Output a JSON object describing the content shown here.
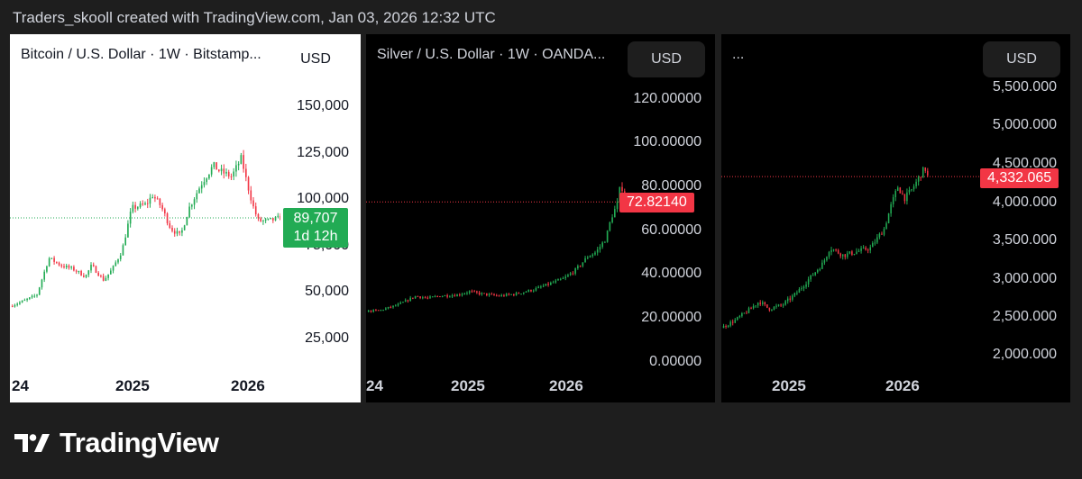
{
  "header": {
    "text": "Traders_skooll created with TradingView.com, Jan 03, 2026 12:32 UTC"
  },
  "brand": {
    "name": "TradingView"
  },
  "colors": {
    "up": "#22ab54",
    "down": "#f23645",
    "bg_dark": "#000000",
    "bg_light": "#ffffff"
  },
  "charts": [
    {
      "title": "Bitcoin / U.S. Dollar · 1W · Bitstamp...",
      "currency": "USD",
      "theme": "light",
      "y_ticks": [
        "150,000",
        "125,000",
        "100,000",
        "75,000",
        "50,000",
        "25,000"
      ],
      "x_ticks": [
        "24",
        "2025",
        "2026"
      ],
      "last_price": "89,707",
      "countdown": "1d 12h"
    },
    {
      "title": "Silver / U.S. Dollar · 1W · OANDA...",
      "currency": "USD",
      "theme": "dark",
      "y_ticks": [
        "120.00000",
        "100.00000",
        "80.00000",
        "60.00000",
        "40.00000",
        "20.00000",
        "0.00000"
      ],
      "x_ticks": [
        "24",
        "2025",
        "2026"
      ],
      "last_price": "72.82140"
    },
    {
      "title": "...",
      "currency": "USD",
      "theme": "dark",
      "y_ticks": [
        "5,500.000",
        "5,000.000",
        "4,500.000",
        "4,000.000",
        "3,500.000",
        "3,000.000",
        "2,500.000",
        "2,000.000"
      ],
      "x_ticks": [
        "2025",
        "2026"
      ],
      "last_price": "4,332.065"
    }
  ],
  "chart_data": [
    {
      "type": "candlestick",
      "title": "Bitcoin / U.S. Dollar · 1W · Bitstamp...",
      "interval": "1W",
      "ylim": [
        10000,
        160000
      ],
      "x_range": [
        2023.88,
        2026.1
      ],
      "last": 89707,
      "path": [
        [
          2023.88,
          42000
        ],
        [
          2024.0,
          45000
        ],
        [
          2024.1,
          48000
        ],
        [
          2024.2,
          68000
        ],
        [
          2024.3,
          64000
        ],
        [
          2024.4,
          62000
        ],
        [
          2024.5,
          58000
        ],
        [
          2024.55,
          64000
        ],
        [
          2024.65,
          56000
        ],
        [
          2024.72,
          62000
        ],
        [
          2024.8,
          72000
        ],
        [
          2024.88,
          95000
        ],
        [
          2025.0,
          97000
        ],
        [
          2025.05,
          102000
        ],
        [
          2025.12,
          96000
        ],
        [
          2025.2,
          84000
        ],
        [
          2025.28,
          80000
        ],
        [
          2025.35,
          95000
        ],
        [
          2025.45,
          108000
        ],
        [
          2025.55,
          118000
        ],
        [
          2025.6,
          115000
        ],
        [
          2025.7,
          112000
        ],
        [
          2025.78,
          122000
        ],
        [
          2025.82,
          110000
        ],
        [
          2025.88,
          95000
        ],
        [
          2025.92,
          88000
        ],
        [
          2026.0,
          88000
        ],
        [
          2026.1,
          89707
        ]
      ]
    },
    {
      "type": "candlestick",
      "title": "Silver / U.S. Dollar · 1W · OANDA...",
      "interval": "1W",
      "ylim": [
        -10,
        130
      ],
      "x_range": [
        2023.88,
        2026.1
      ],
      "last": 72.8214,
      "path": [
        [
          2023.88,
          23
        ],
        [
          2024.0,
          23.5
        ],
        [
          2024.15,
          26
        ],
        [
          2024.3,
          30
        ],
        [
          2024.4,
          29
        ],
        [
          2024.5,
          30
        ],
        [
          2024.65,
          30.5
        ],
        [
          2024.75,
          32
        ],
        [
          2024.85,
          31
        ],
        [
          2025.0,
          30
        ],
        [
          2025.15,
          31
        ],
        [
          2025.3,
          33
        ],
        [
          2025.45,
          36
        ],
        [
          2025.55,
          38
        ],
        [
          2025.65,
          42
        ],
        [
          2025.75,
          48
        ],
        [
          2025.82,
          50
        ],
        [
          2025.9,
          56
        ],
        [
          2025.95,
          66
        ],
        [
          2026.0,
          72
        ],
        [
          2026.03,
          82
        ],
        [
          2026.06,
          72.82
        ]
      ]
    },
    {
      "type": "candlestick",
      "title": "...",
      "interval": "1W",
      "ylim": [
        1700,
        5900
      ],
      "x_range": [
        2024.5,
        2026.4
      ],
      "last": 4332.065,
      "path": [
        [
          2024.5,
          2350
        ],
        [
          2024.6,
          2450
        ],
        [
          2024.7,
          2580
        ],
        [
          2024.78,
          2700
        ],
        [
          2024.85,
          2600
        ],
        [
          2024.95,
          2650
        ],
        [
          2025.05,
          2800
        ],
        [
          2025.15,
          3000
        ],
        [
          2025.25,
          3200
        ],
        [
          2025.3,
          3400
        ],
        [
          2025.4,
          3300
        ],
        [
          2025.5,
          3350
        ],
        [
          2025.6,
          3400
        ],
        [
          2025.7,
          3650
        ],
        [
          2025.75,
          3950
        ],
        [
          2025.8,
          4200
        ],
        [
          2025.85,
          4050
        ],
        [
          2025.9,
          4150
        ],
        [
          2025.95,
          4300
        ],
        [
          2026.0,
          4450
        ],
        [
          2026.02,
          4332.065
        ]
      ]
    }
  ]
}
